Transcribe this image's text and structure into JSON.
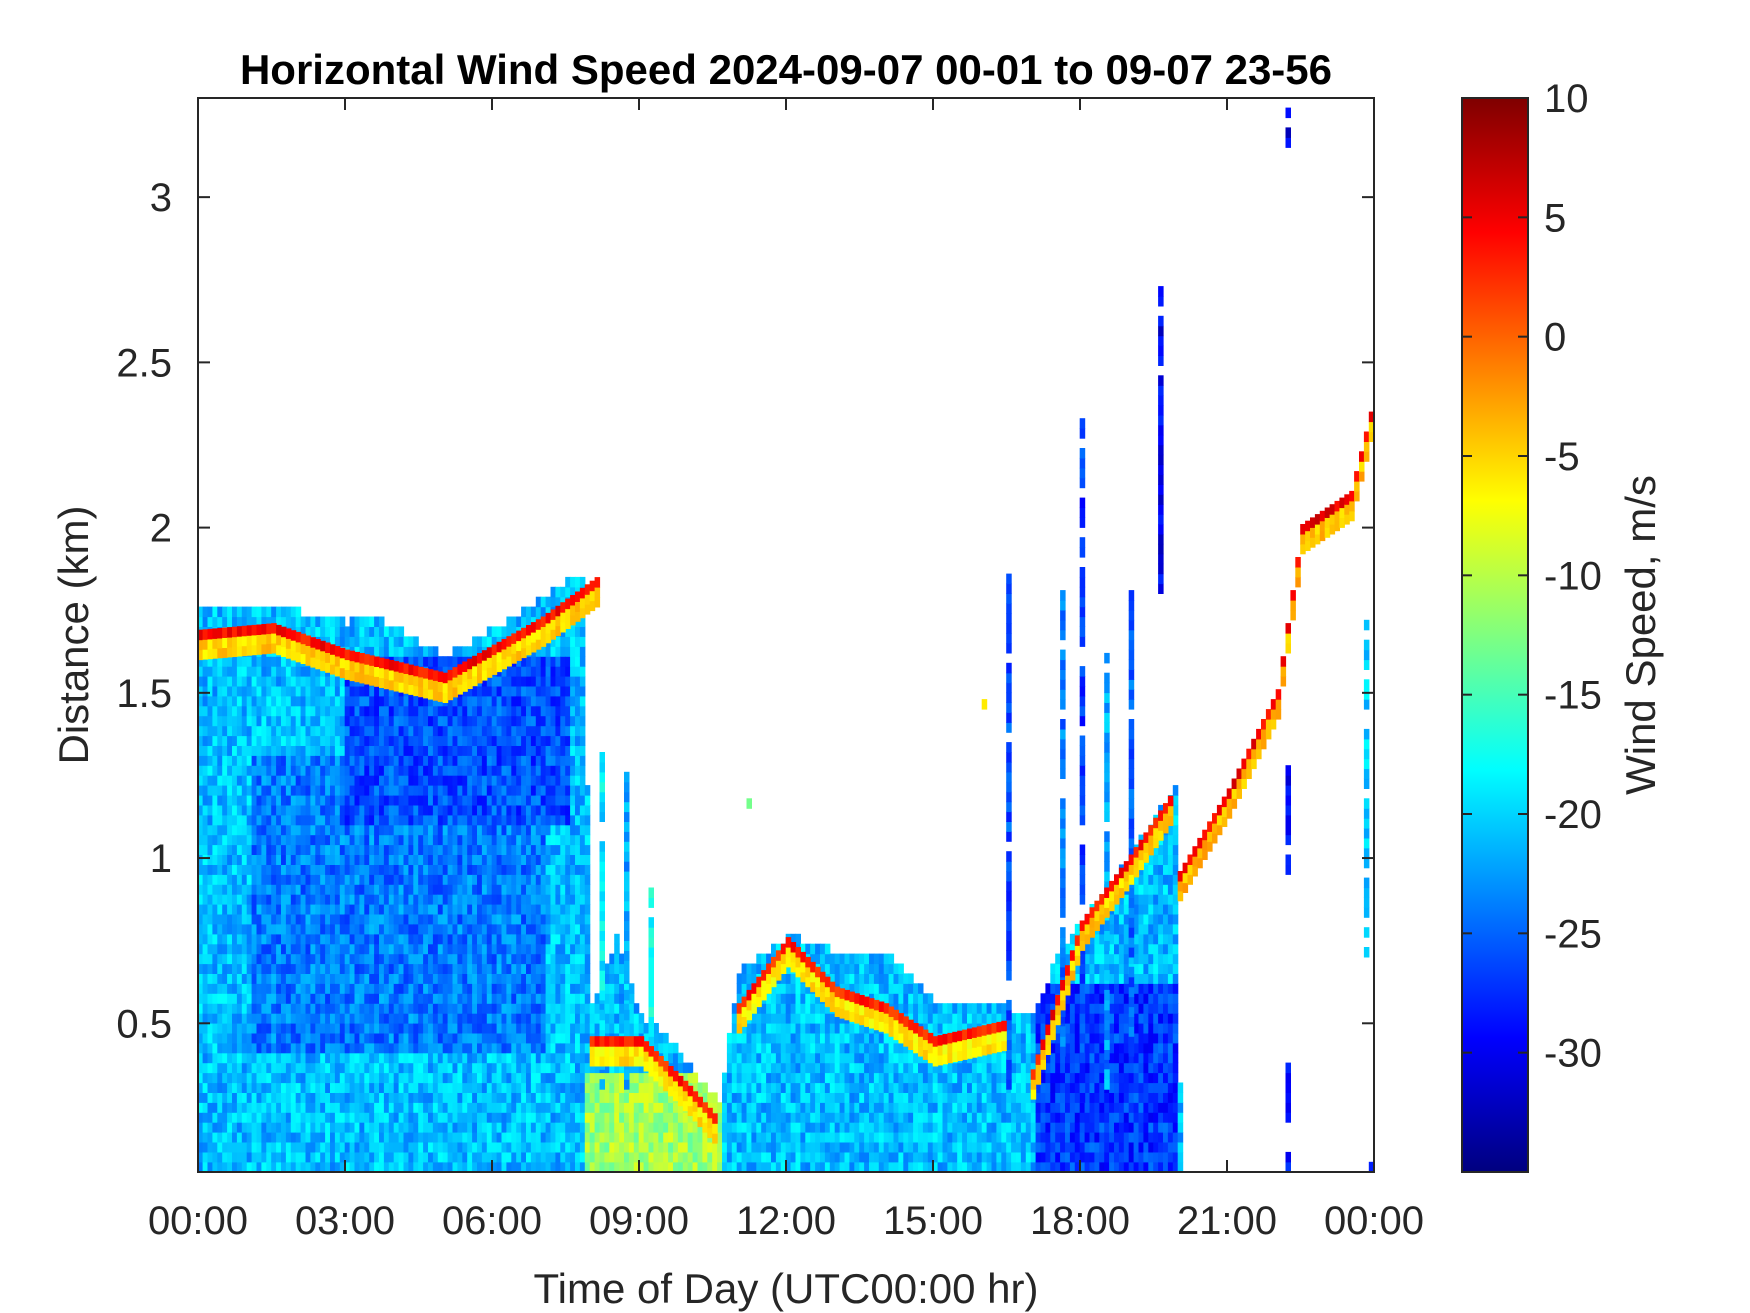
{
  "chart_data": {
    "type": "heatmap",
    "title": "Horizontal Wind Speed 2024-09-07 00-01 to 09-07 23-56",
    "xlabel": "Time of Day (UTC00:00 hr)",
    "ylabel": "Distance (km)",
    "colorbar_label": "Wind Speed, m/s",
    "colormap": "jet",
    "x_unit": "hour of day",
    "xlim": [
      0,
      24
    ],
    "ylim": [
      0.05,
      3.3
    ],
    "clim": [
      -35,
      10
    ],
    "x_ticks": [
      0,
      3,
      6,
      9,
      12,
      15,
      18,
      21,
      24
    ],
    "x_tick_labels": [
      "00:00",
      "03:00",
      "06:00",
      "09:00",
      "12:00",
      "15:00",
      "18:00",
      "21:00",
      "00:00"
    ],
    "y_ticks": [
      0.5,
      1,
      1.5,
      2,
      2.5,
      3
    ],
    "y_tick_labels": [
      "0.5",
      "1",
      "1.5",
      "2",
      "2.5",
      "3"
    ],
    "colorbar_ticks": [
      10,
      5,
      0,
      -5,
      -10,
      -15,
      -20,
      -25,
      -30
    ],
    "colorbar_tick_labels": [
      "10",
      "5",
      "0",
      "-5",
      "-10",
      "-15",
      "-20",
      "-25",
      "-30"
    ],
    "grid": false,
    "cell_hours": 0.1,
    "cell_km": 0.03,
    "background_m_s": -21,
    "data_top_km": [
      [
        0.0,
        1.74
      ],
      [
        1.5,
        1.75
      ],
      [
        3.0,
        1.7
      ],
      [
        3.5,
        1.72
      ],
      [
        5.0,
        1.6
      ],
      [
        6.0,
        1.68
      ],
      [
        7.0,
        1.78
      ],
      [
        7.8,
        1.85
      ],
      [
        8.0,
        0.55
      ],
      [
        8.5,
        0.75
      ],
      [
        9.0,
        0.5
      ],
      [
        9.5,
        0.45
      ],
      [
        10.0,
        0.35
      ],
      [
        10.6,
        0.25
      ],
      [
        11.0,
        0.65
      ],
      [
        12.0,
        0.75
      ],
      [
        13.0,
        0.7
      ],
      [
        14.0,
        0.7
      ],
      [
        15.0,
        0.55
      ],
      [
        16.0,
        0.55
      ],
      [
        17.0,
        0.5
      ],
      [
        17.5,
        0.7
      ],
      [
        18.0,
        0.8
      ],
      [
        19.0,
        1.0
      ],
      [
        19.9,
        1.2
      ],
      [
        20.0,
        0.3
      ],
      [
        20.1,
        0.05
      ]
    ],
    "regions": [
      {
        "name": "night low-level jet",
        "x": [
          0.0,
          7.8
        ],
        "y": [
          0.05,
          1.5
        ],
        "wind_m_s": -21
      },
      {
        "name": "night jet core",
        "x": [
          1.0,
          7.0
        ],
        "y": [
          0.4,
          1.3
        ],
        "wind_m_s": -24
      },
      {
        "name": "near-surface slower wind",
        "x": [
          7.8,
          10.6
        ],
        "y": [
          0.05,
          0.35
        ],
        "wind_m_s": -11
      },
      {
        "name": "evening strong core",
        "x": [
          17.0,
          20.0
        ],
        "y": [
          0.05,
          0.6
        ],
        "wind_m_s": -27
      },
      {
        "name": "sparse upper layer",
        "x": [
          3.0,
          7.5
        ],
        "y": [
          1.1,
          1.6
        ],
        "wind_m_s": -26
      }
    ],
    "bands": [
      {
        "name": "night top edge",
        "points": [
          [
            0.0,
            1.68
          ],
          [
            1.5,
            1.7
          ],
          [
            3.0,
            1.62
          ],
          [
            5.0,
            1.55
          ],
          [
            7.0,
            1.72
          ],
          [
            8.2,
            1.85
          ]
        ],
        "wind_m_s": 4
      },
      {
        "name": "morning top edge",
        "points": [
          [
            8.0,
            0.45
          ],
          [
            9.0,
            0.45
          ],
          [
            10.0,
            0.3
          ],
          [
            10.6,
            0.2
          ]
        ],
        "wind_m_s": 3
      },
      {
        "name": "midday top edge",
        "points": [
          [
            11.0,
            0.55
          ],
          [
            12.0,
            0.75
          ],
          [
            13.0,
            0.6
          ],
          [
            14.0,
            0.55
          ],
          [
            15.0,
            0.45
          ],
          [
            16.5,
            0.5
          ]
        ],
        "wind_m_s": 3
      },
      {
        "name": "evening mixing-layer top",
        "points": [
          [
            17.0,
            0.35
          ],
          [
            18.0,
            0.8
          ],
          [
            19.0,
            1.0
          ],
          [
            19.9,
            1.2
          ]
        ],
        "wind_m_s": 4
      },
      {
        "name": "residual layer rising",
        "points": [
          [
            20.0,
            0.95
          ],
          [
            21.0,
            1.2
          ],
          [
            22.0,
            1.5
          ],
          [
            22.5,
            2.0
          ],
          [
            23.0,
            2.05
          ],
          [
            23.5,
            2.1
          ],
          [
            24.0,
            2.4
          ]
        ],
        "wind_m_s": 5
      }
    ],
    "columns": [
      {
        "x": 8.2,
        "y": [
          0.3,
          1.3
        ],
        "wind_m_s": -19
      },
      {
        "x": 8.7,
        "y": [
          0.3,
          1.25
        ],
        "wind_m_s": -22
      },
      {
        "x": 9.2,
        "y": [
          0.4,
          0.9
        ],
        "wind_m_s": -18
      },
      {
        "x": 16.5,
        "y": [
          0.3,
          1.85
        ],
        "wind_m_s": -26
      },
      {
        "x": 17.6,
        "y": [
          0.4,
          1.8
        ],
        "wind_m_s": -24
      },
      {
        "x": 18.0,
        "y": [
          0.2,
          2.3
        ],
        "wind_m_s": -27
      },
      {
        "x": 18.5,
        "y": [
          0.3,
          1.6
        ],
        "wind_m_s": -22
      },
      {
        "x": 19.0,
        "y": [
          0.4,
          1.8
        ],
        "wind_m_s": -25
      },
      {
        "x": 19.6,
        "y": [
          1.8,
          2.7
        ],
        "wind_m_s": -30
      },
      {
        "x": 22.2,
        "y": [
          0.05,
          0.4
        ],
        "wind_m_s": -29
      },
      {
        "x": 22.2,
        "y": [
          0.95,
          1.3
        ],
        "wind_m_s": -29
      },
      {
        "x": 22.2,
        "y": [
          3.15,
          3.25
        ],
        "wind_m_s": -30
      },
      {
        "x": 23.8,
        "y": [
          0.7,
          1.7
        ],
        "wind_m_s": -20
      }
    ],
    "specks": [
      {
        "x": 16.0,
        "y": 1.45,
        "wind_m_s": -6
      },
      {
        "x": 11.2,
        "y": 1.15,
        "wind_m_s": -13
      },
      {
        "x": 23.9,
        "y": 0.05,
        "wind_m_s": -28
      }
    ]
  }
}
